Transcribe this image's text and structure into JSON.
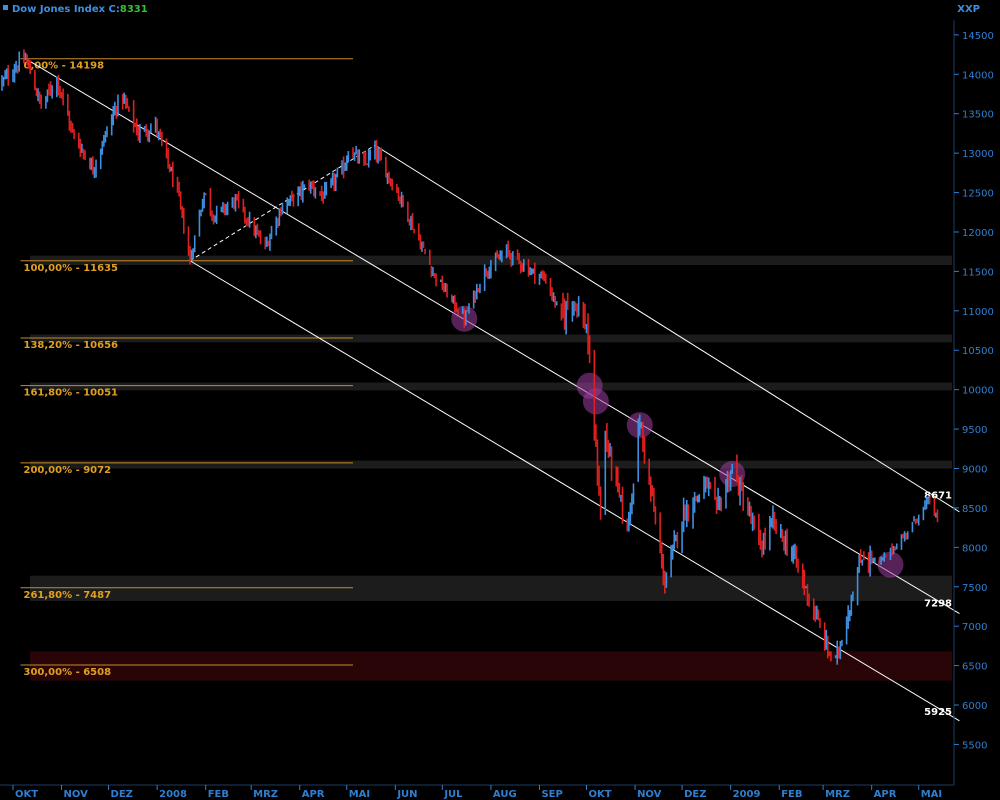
{
  "header": {
    "title": "Dow Jones Index C:8331",
    "title_color": "#3e8fe0",
    "close_value": "8331",
    "close_color": "#36c036",
    "symbol": "XXP",
    "symbol_color": "#3e8fe0"
  },
  "colors": {
    "background": "#000000",
    "axis_text": "#2f7fd0",
    "fib_text": "#e1a020",
    "channel_lines": "#ffffff",
    "band": "#262626",
    "bottom_band": "#2a0508",
    "up_bar": "#3e8fe0",
    "down_bar": "#e02020",
    "touch_marker": "#9d3ea0"
  },
  "chart_data": {
    "type": "ohlc",
    "title": "Dow Jones Index",
    "ylim": [
      5250,
      14750
    ],
    "y_ticks": [
      5500,
      6000,
      6500,
      7000,
      7500,
      8000,
      8500,
      9000,
      9500,
      10000,
      10500,
      11000,
      11500,
      12000,
      12500,
      13000,
      13500,
      14000,
      14500
    ],
    "x_ticks": [
      {
        "label": "OKT",
        "date": "2007-10-01"
      },
      {
        "label": "NOV",
        "date": "2007-11-01"
      },
      {
        "label": "DEZ",
        "date": "2007-12-01"
      },
      {
        "label": "2008",
        "date": "2008-01-01"
      },
      {
        "label": "FEB",
        "date": "2008-02-01"
      },
      {
        "label": "MRZ",
        "date": "2008-03-01"
      },
      {
        "label": "APR",
        "date": "2008-04-01"
      },
      {
        "label": "MAI",
        "date": "2008-05-01"
      },
      {
        "label": "JUN",
        "date": "2008-06-01"
      },
      {
        "label": "JUL",
        "date": "2008-07-01"
      },
      {
        "label": "AUG",
        "date": "2008-08-01"
      },
      {
        "label": "SEP",
        "date": "2008-09-01"
      },
      {
        "label": "OKT",
        "date": "2008-10-01"
      },
      {
        "label": "NOV",
        "date": "2008-11-01"
      },
      {
        "label": "DEZ",
        "date": "2008-12-01"
      },
      {
        "label": "2009",
        "date": "2009-01-01"
      },
      {
        "label": "FEB",
        "date": "2009-02-01"
      },
      {
        "label": "MRZ",
        "date": "2009-03-01"
      },
      {
        "label": "APR",
        "date": "2009-04-01"
      },
      {
        "label": "MAI",
        "date": "2009-05-01"
      }
    ],
    "price_path": [
      [
        "2007-09-24",
        13900
      ],
      [
        "2007-10-03",
        14100
      ],
      [
        "2007-10-09",
        14198
      ],
      [
        "2007-10-19",
        13600
      ],
      [
        "2007-10-29",
        13950
      ],
      [
        "2007-11-08",
        13250
      ],
      [
        "2007-11-21",
        12800
      ],
      [
        "2007-12-06",
        13600
      ],
      [
        "2007-12-10",
        13700
      ],
      [
        "2007-12-20",
        13250
      ],
      [
        "2007-12-31",
        13350
      ],
      [
        "2008-01-14",
        12500
      ],
      [
        "2008-01-22",
        11635
      ],
      [
        "2008-01-31",
        12500
      ],
      [
        "2008-02-06",
        12200
      ],
      [
        "2008-02-20",
        12400
      ],
      [
        "2008-03-10",
        11800
      ],
      [
        "2008-03-20",
        12300
      ],
      [
        "2008-04-07",
        12600
      ],
      [
        "2008-04-16",
        12450
      ],
      [
        "2008-04-30",
        12850
      ],
      [
        "2008-05-02",
        13050
      ],
      [
        "2008-05-12",
        12850
      ],
      [
        "2008-05-19",
        13030
      ],
      [
        "2008-06-05",
        12400
      ],
      [
        "2008-06-26",
        11450
      ],
      [
        "2008-07-15",
        10900
      ],
      [
        "2008-07-28",
        11500
      ],
      [
        "2008-08-11",
        11750
      ],
      [
        "2008-08-27",
        11500
      ],
      [
        "2008-09-05",
        11400
      ],
      [
        "2008-09-15",
        10900
      ],
      [
        "2008-09-22",
        11200
      ],
      [
        "2008-10-01",
        10800
      ],
      [
        "2008-10-10",
        8450
      ],
      [
        "2008-10-13",
        9400
      ],
      [
        "2008-10-27",
        8200
      ],
      [
        "2008-11-04",
        9600
      ],
      [
        "2008-11-20",
        7550
      ],
      [
        "2008-12-01",
        8400
      ],
      [
        "2008-12-17",
        8800
      ],
      [
        "2008-12-23",
        8450
      ],
      [
        "2009-01-02",
        9000
      ],
      [
        "2009-01-20",
        8000
      ],
      [
        "2009-01-28",
        8300
      ],
      [
        "2009-02-10",
        7900
      ],
      [
        "2009-03-05",
        6650
      ],
      [
        "2009-03-09",
        6550
      ],
      [
        "2009-03-26",
        7900
      ],
      [
        "2009-04-06",
        7800
      ],
      [
        "2009-04-20",
        8100
      ],
      [
        "2009-05-08",
        8600
      ],
      [
        "2009-05-13",
        8331
      ]
    ],
    "fib_levels": [
      {
        "label": "0,00% - 14198",
        "value": 14198,
        "band": false
      },
      {
        "label": "100,00% - 11635",
        "value": 11635,
        "band": true
      },
      {
        "label": "138,20% - 10656",
        "value": 10656,
        "band": true
      },
      {
        "label": "161,80% - 10051",
        "value": 10051,
        "band": true
      },
      {
        "label": "200,00% - 9072",
        "value": 9072,
        "band": true
      },
      {
        "label": "261,80% - 7487",
        "value": 7487,
        "band": true
      },
      {
        "label": "300,00% - 6508",
        "value": 6508,
        "band": true
      }
    ],
    "fib_anchor_date": "2007-10-09",
    "fib_line_end_date": "2008-05-05",
    "bands": [
      {
        "from": 11580,
        "to": 11700
      },
      {
        "from": 10600,
        "to": 10700
      },
      {
        "from": 9990,
        "to": 10090
      },
      {
        "from": 9000,
        "to": 9100
      },
      {
        "from": 7320,
        "to": 7640
      },
      {
        "from": 6310,
        "to": 6680,
        "tint": "bottom"
      }
    ],
    "channel": {
      "upper": [
        [
          "2008-05-19",
          13100
        ],
        [
          "2009-05-27",
          8450
        ]
      ],
      "middle": [
        [
          "2007-10-09",
          14198
        ],
        [
          "2009-05-27",
          7160
        ]
      ],
      "lower": [
        [
          "2008-01-22",
          11635
        ],
        [
          "2009-05-27",
          5800
        ]
      ],
      "dashed_connector": [
        [
          "2008-01-22",
          11635
        ],
        [
          "2008-05-19",
          13100
        ]
      ]
    },
    "channel_end_labels": [
      {
        "text": "8671",
        "value": 8671
      },
      {
        "text": "7298",
        "value": 7298
      },
      {
        "text": "5925",
        "value": 5925
      }
    ],
    "touch_markers": [
      [
        "2008-07-15",
        10900
      ],
      [
        "2008-10-03",
        10050
      ],
      [
        "2008-10-07",
        9850
      ],
      [
        "2008-11-04",
        9550
      ],
      [
        "2009-01-02",
        8930
      ],
      [
        "2009-04-13",
        7780
      ]
    ]
  }
}
